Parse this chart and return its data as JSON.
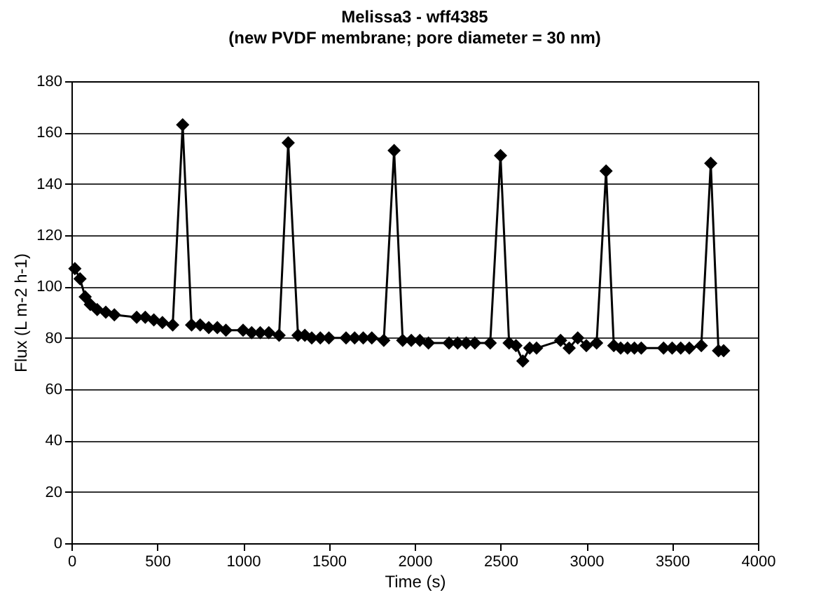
{
  "chart_data": {
    "type": "line",
    "title": "Melissa3 - wff4385",
    "subtitle": "(new PVDF membrane; pore diameter = 30 nm)",
    "xlabel": "Time (s)",
    "ylabel": "Flux (L m-2 h-1)",
    "xlim": [
      0,
      4000
    ],
    "xticks": [
      0,
      500,
      1000,
      1500,
      2000,
      2500,
      3000,
      3500,
      4000
    ],
    "ylim": [
      0,
      180
    ],
    "yticks": [
      0,
      20,
      40,
      60,
      80,
      100,
      120,
      140,
      160,
      180
    ],
    "grid": "y",
    "marker": "diamond",
    "line_style": "solid",
    "legend": false,
    "series": [
      {
        "color": "#000000",
        "x": [
          20,
          50,
          80,
          110,
          150,
          200,
          250,
          380,
          430,
          480,
          530,
          590,
          648,
          700,
          750,
          800,
          850,
          900,
          1000,
          1050,
          1100,
          1150,
          1210,
          1263,
          1320,
          1360,
          1400,
          1450,
          1500,
          1600,
          1650,
          1700,
          1750,
          1820,
          1880,
          1930,
          1980,
          2030,
          2080,
          2200,
          2250,
          2300,
          2350,
          2440,
          2500,
          2550,
          2590,
          2630,
          2670,
          2710,
          2850,
          2900,
          2950,
          3000,
          3060,
          3115,
          3160,
          3200,
          3240,
          3280,
          3320,
          3450,
          3500,
          3550,
          3600,
          3670,
          3725,
          3770,
          3800
        ],
        "values": [
          107,
          103,
          96,
          93,
          91,
          90,
          89,
          88,
          88,
          87,
          86,
          85,
          163,
          85,
          85,
          84,
          84,
          83,
          83,
          82,
          82,
          82,
          81,
          156,
          81,
          81,
          80,
          80,
          80,
          80,
          80,
          80,
          80,
          79,
          153,
          79,
          79,
          79,
          78,
          78,
          78,
          78,
          78,
          78,
          151,
          78,
          77,
          71,
          76,
          76,
          79,
          76,
          80,
          77,
          78,
          145,
          77,
          76,
          76,
          76,
          76,
          76,
          76,
          76,
          76,
          77,
          148,
          75,
          75
        ]
      }
    ]
  }
}
